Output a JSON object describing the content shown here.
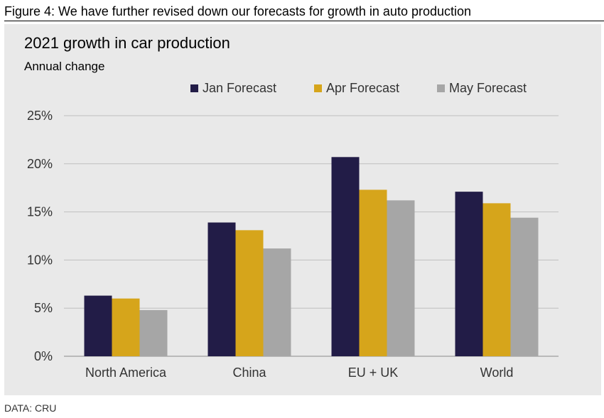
{
  "figure_title": "Figure 4: We have further revised down our forecasts for growth in auto production",
  "source": "DATA: CRU",
  "chart_data": {
    "type": "bar",
    "title": "2021 growth in car production",
    "subtitle": "Annual change",
    "categories": [
      "North America",
      "China",
      "EU + UK",
      "World"
    ],
    "series": [
      {
        "name": "Jan Forecast",
        "color": "#221c47",
        "values": [
          6.3,
          13.9,
          20.7,
          17.1
        ]
      },
      {
        "name": "Apr Forecast",
        "color": "#d6a51b",
        "values": [
          6.0,
          13.1,
          17.3,
          15.9
        ]
      },
      {
        "name": "May Forecast",
        "color": "#a6a6a6",
        "values": [
          4.8,
          11.2,
          16.2,
          14.4
        ]
      }
    ],
    "ylim": [
      0,
      25
    ],
    "yticks": [
      "0%",
      "5%",
      "10%",
      "15%",
      "20%",
      "25%"
    ],
    "ytick_values": [
      0,
      5,
      10,
      15,
      20,
      25
    ],
    "legend_position": "top",
    "grid": true
  }
}
